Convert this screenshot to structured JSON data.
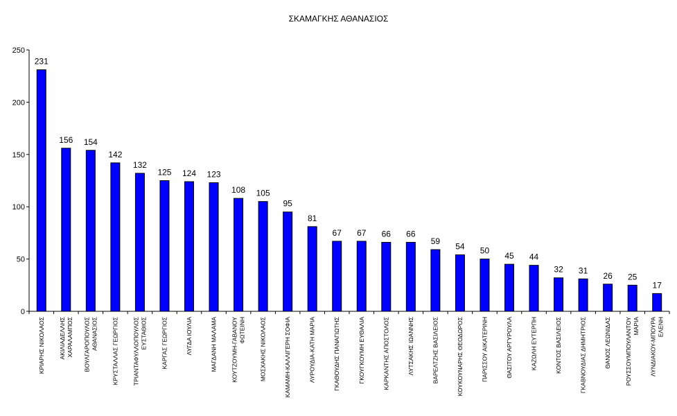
{
  "chart_data": {
    "type": "bar",
    "title": "ΣΚΑΜΑΓΚΗΣ ΑΘΑΝΑΣΙΟΣ",
    "xlabel": "",
    "ylabel": "",
    "ylim": [
      0,
      250
    ],
    "yticks": [
      "0",
      "50",
      "100",
      "150",
      "200",
      "250"
    ],
    "grid": false,
    "bar_color": "#0000ff",
    "categories": [
      [
        "ΚΡΙΑΡΗΣ ΝΙΚΟΛΑΟΣ"
      ],
      [
        "ΑΚΙΛΙΑΔΕΛΛΗΣ",
        "ΧΑΡΑΛΑΜΠΟΣ"
      ],
      [
        "ΒΟΥΛΓΑΡΟΠΟΥΛΟΣ",
        "ΑΘΑΝΑΣΙΟΣ"
      ],
      [
        "ΚΡΥΣΤΑΛΛΑΣ ΓΕΩΡΓΙΟΣ"
      ],
      [
        "ΤΡΙΑΝΤΑΦΥΛΛΟΠΟΥΛΟΣ",
        "ΕΥΣΤΑΘΙΟΣ"
      ],
      [
        "ΚΑΡΓΑΣ ΓΕΩΡΓΙΟΣ"
      ],
      [
        "ΛΥΓΔΑ ΙΟΥΛΙΑ"
      ],
      [
        "ΜΑΓΔΑΝΗ ΜΑΛΑΜΑ"
      ],
      [
        "ΚΟΥΤΖΟΥΜΗ-ΓΑΒΑΝΟΥ",
        "ΦΩΤΕΙΝΗ"
      ],
      [
        "ΜΟΣΧΑΚΗΣ ΝΙΚΟΛΑΟΣ"
      ],
      [
        "ΚΑΜΑΜΗ-ΚΑΛΛΙΓΕΡΗ ΣΟΦΙΑ"
      ],
      [
        "ΛΥΡΟΥΔΙΑ-ΚΑΤΗ ΜΑΡΙΑ"
      ],
      [
        "ΓΚΑΘΟΥΔΗΣ ΠΑΝΑΓΙΩΤΗΣ"
      ],
      [
        "ΓΚΟΥΓΚΟΥΜΗ ΕΥΘΑΛΙΑ"
      ],
      [
        "ΚΑΡΚΑΝΤΗΣ ΑΠΟΣΤΟΛΟΣ"
      ],
      [
        "ΛΥΤΣΑΚΗΣ ΙΩΑΝΝΗΣ"
      ],
      [
        "ΒΑΡΕΛΤΖΗΣ ΒΑΣΙΛΕΙΟΣ"
      ],
      [
        "ΚΟΥΚΟΥΝΑΡΗΣ ΘΕΟΔΩΡΟΣ"
      ],
      [
        "ΠΑΡΙΣΣΟΥ ΑΙΚΑΤΕΡΙΝΗ"
      ],
      [
        "ΘΑΣΙΤΟΥ ΑΡΓΥΡΟΥΛΑ"
      ],
      [
        "ΚΑΖΩΛΗ ΕΥΤΕΡΠΗ"
      ],
      [
        "ΚΟΝΤΟΣ ΒΑΣΙΛΕΙΟΣ"
      ],
      [
        "ΓΚΑΒΝΟΥΔΙΑΣ ΔΗΜΗΤΡΙΟΣ"
      ],
      [
        "ΘΑΝΟΣ ΛΕΩΝΙΔΑΣ"
      ],
      [
        "ΡΟΥΣΣΟΥΜΠΟΥΛΑΝΤΟΥ",
        "ΜΑΡΙΑ"
      ],
      [
        "ΛΥΝΔΙΑΚΟΥ-ΜΠΟΥΡΑ",
        "ΕΛΕΝΗ"
      ]
    ],
    "values": [
      231,
      156,
      154,
      142,
      132,
      125,
      124,
      123,
      108,
      105,
      95,
      81,
      67,
      67,
      66,
      66,
      59,
      54,
      50,
      45,
      44,
      32,
      31,
      26,
      25,
      17
    ]
  }
}
